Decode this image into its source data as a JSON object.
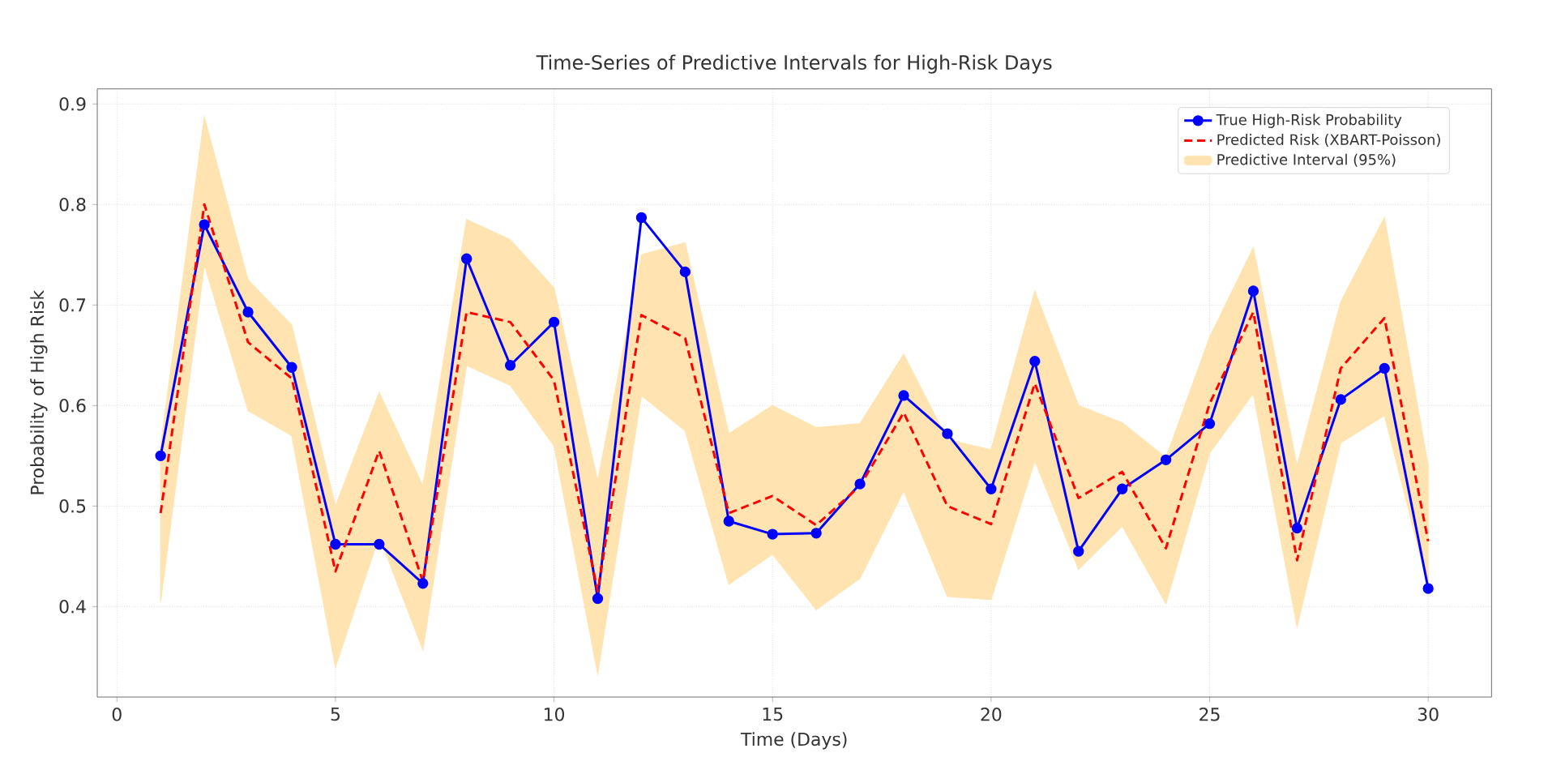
{
  "chart_data": {
    "type": "line",
    "title": "Time-Series of Predictive Intervals for High-Risk Days",
    "xlabel": "Time (Days)",
    "ylabel": "Probability of High Risk",
    "x": [
      1,
      2,
      3,
      4,
      5,
      6,
      7,
      8,
      9,
      10,
      11,
      12,
      13,
      14,
      15,
      16,
      17,
      18,
      19,
      20,
      21,
      22,
      23,
      24,
      25,
      26,
      27,
      28,
      29,
      30
    ],
    "series": [
      {
        "name": "True High-Risk Probability",
        "color": "#0000ff",
        "marker": "circle",
        "line_style": "solid",
        "values": [
          0.55,
          0.78,
          0.693,
          0.638,
          0.462,
          0.462,
          0.423,
          0.746,
          0.64,
          0.683,
          0.408,
          0.787,
          0.733,
          0.485,
          0.472,
          0.473,
          0.522,
          0.61,
          0.572,
          0.517,
          0.644,
          0.455,
          0.517,
          0.546,
          0.582,
          0.714,
          0.478,
          0.606,
          0.637,
          0.418
        ]
      },
      {
        "name": "Predicted Risk (XBART-Poisson)",
        "color": "#ff0000",
        "marker": "none",
        "line_style": "dashed",
        "values": [
          0.493,
          0.8,
          0.663,
          0.627,
          0.435,
          0.555,
          0.425,
          0.693,
          0.683,
          0.625,
          0.415,
          0.69,
          0.667,
          0.493,
          0.51,
          0.481,
          0.52,
          0.593,
          0.5,
          0.482,
          0.622,
          0.508,
          0.534,
          0.458,
          0.602,
          0.693,
          0.446,
          0.637,
          0.687,
          0.465
        ]
      },
      {
        "type": "area",
        "name": "Predictive Interval (95%)",
        "color": "#ffe4b2",
        "values": [
          null,
          null,
          null,
          null,
          null,
          null,
          null,
          null,
          null,
          null,
          null,
          null,
          null,
          null,
          null,
          null,
          null,
          null,
          null,
          null,
          null,
          null,
          null,
          null,
          null,
          null,
          null,
          null,
          null,
          null
        ],
        "lower": [
          0.405,
          0.74,
          0.595,
          0.57,
          0.34,
          0.47,
          0.357,
          0.64,
          0.62,
          0.56,
          0.333,
          0.61,
          0.575,
          0.422,
          0.452,
          0.397,
          0.428,
          0.515,
          0.41,
          0.407,
          0.545,
          0.437,
          0.48,
          0.403,
          0.553,
          0.612,
          0.38,
          0.563,
          0.59,
          0.42
        ],
        "upper": [
          0.56,
          0.887,
          0.725,
          0.68,
          0.5,
          0.613,
          0.52,
          0.785,
          0.765,
          0.717,
          0.525,
          0.75,
          0.762,
          0.572,
          0.6,
          0.578,
          0.582,
          0.651,
          0.566,
          0.556,
          0.714,
          0.6,
          0.583,
          0.548,
          0.668,
          0.757,
          0.54,
          0.703,
          0.787,
          0.54
        ]
      }
    ],
    "xlim": [
      -0.45,
      31.45
    ],
    "ylim": [
      0.31,
      0.915
    ],
    "xticks": [
      0,
      5,
      10,
      15,
      20,
      25,
      30
    ],
    "yticks": [
      0.4,
      0.5,
      0.6,
      0.7,
      0.8,
      0.9
    ],
    "grid": true,
    "legend": "top right"
  }
}
